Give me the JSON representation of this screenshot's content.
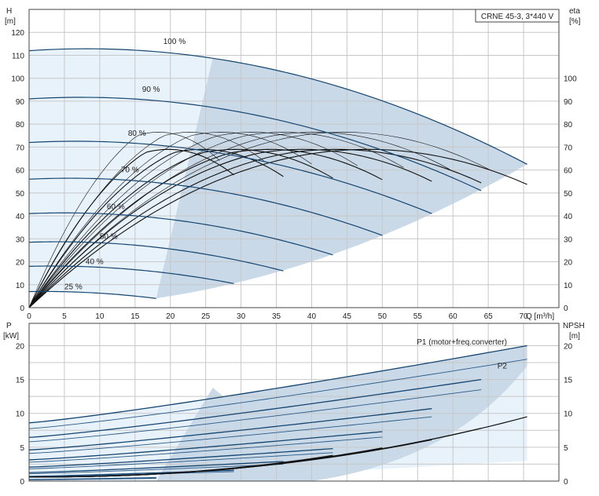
{
  "chart_data": [
    {
      "type": "line",
      "legend_box": "CRNE 45-3, 3*440 V",
      "x_axis_label": "Q [m³/h]",
      "y_left_label_line1": "H",
      "y_left_label_line2": "[m]",
      "y_right_label_line1": "eta",
      "y_right_label_line2": "[%]",
      "xlim": [
        0,
        75
      ],
      "ylim": [
        0,
        130
      ],
      "x_ticks": [
        0,
        5,
        10,
        15,
        20,
        25,
        30,
        35,
        40,
        45,
        50,
        55,
        60,
        65,
        70
      ],
      "y_left_ticks": [
        0,
        10,
        20,
        30,
        40,
        50,
        60,
        70,
        80,
        90,
        100,
        110,
        120
      ],
      "y_right_ticks": [
        0,
        10,
        20,
        30,
        40,
        50,
        60,
        70,
        80,
        90,
        100
      ],
      "grid": true,
      "speed_labels": [
        {
          "text": "100 %",
          "q": 19,
          "h": 115
        },
        {
          "text": "90 %",
          "q": 16,
          "h": 94
        },
        {
          "text": "80 %",
          "q": 14,
          "h": 75
        },
        {
          "text": "70 %",
          "q": 13,
          "h": 59
        },
        {
          "text": "60 %",
          "q": 11,
          "h": 43
        },
        {
          "text": "50 %",
          "q": 10,
          "h": 30
        },
        {
          "text": "40 %",
          "q": 8,
          "h": 19
        },
        {
          "text": "25 %",
          "q": 5,
          "h": 8
        }
      ],
      "speed_curves": [
        {
          "speed": 100,
          "h0": 112,
          "q_max": 70.5,
          "h_end": 62.5
        },
        {
          "speed": 90,
          "h0": 91,
          "q_max": 64,
          "h_end": 51
        },
        {
          "speed": 80,
          "h0": 72,
          "q_max": 57,
          "h_end": 41
        },
        {
          "speed": 70,
          "h0": 56,
          "q_max": 50,
          "h_end": 31.5
        },
        {
          "speed": 60,
          "h0": 41,
          "q_max": 43,
          "h_end": 23
        },
        {
          "speed": 50,
          "h0": 28.5,
          "q_max": 36,
          "h_end": 16
        },
        {
          "speed": 40,
          "h0": 18,
          "q_max": 29,
          "h_end": 10.5
        },
        {
          "speed": 25,
          "h0": 7,
          "q_max": 18,
          "h_end": 4
        }
      ]
    },
    {
      "type": "line",
      "x_axis_label": "",
      "y_left_label_line1": "P",
      "y_left_label_line2": "[kW]",
      "y_right_label_line1": "NPSH",
      "y_right_label_line2": "[m]",
      "xlim": [
        0,
        75
      ],
      "ylim": [
        0,
        23.3
      ],
      "y_ticks": [
        0,
        5,
        10,
        15,
        20
      ],
      "grid": true,
      "series_labels": [
        {
          "text": "P1 (motor+freq.converter)",
          "q": 70.5,
          "p": 20.5
        },
        {
          "text": "P2",
          "q": 70.5,
          "p": 17
        }
      ],
      "p1_end": [
        20,
        15,
        10.7,
        7.3,
        4.8,
        2.9,
        1.6,
        0.5
      ],
      "p2_end": [
        18,
        13.5,
        9.5,
        6.5,
        4.2,
        2.5,
        1.4,
        0.4
      ],
      "npsh_curves": [
        {
          "q_max": 70.5,
          "npsh_end": 9.5
        },
        {
          "q_max": 64,
          "npsh_end": 7.8
        },
        {
          "q_max": 57,
          "npsh_end": 6.1
        },
        {
          "q_max": 50,
          "npsh_end": 4.9
        },
        {
          "q_max": 43,
          "npsh_end": 3.8
        }
      ]
    }
  ]
}
